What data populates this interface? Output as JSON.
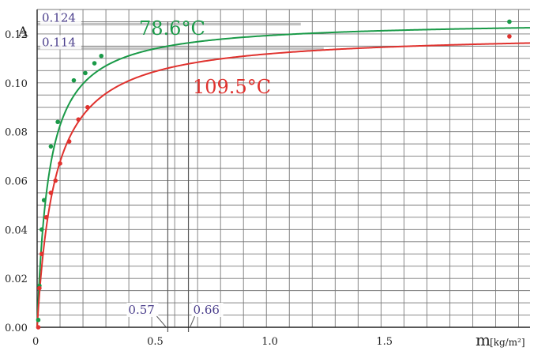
{
  "chart_data": {
    "type": "scatter",
    "title": "",
    "ylabel": "A",
    "xlabel": {
      "main": "m",
      "unit": "[kg/m²]"
    },
    "xlim": [
      0,
      2.15
    ],
    "ylim": [
      0,
      0.13
    ],
    "grid": true,
    "xticks": [
      0,
      0.5,
      1.0,
      1.5
    ],
    "xtick_labels": [
      "0",
      "0.5",
      "1.0",
      "1.5"
    ],
    "yticks": [
      0,
      0.02,
      0.04,
      0.06,
      0.08,
      0.1,
      0.12
    ],
    "ytick_labels": [
      "0.00",
      "0.02",
      "0.04",
      "0.06",
      "0.08",
      "0.10",
      "0.12"
    ],
    "series": [
      {
        "name": "78.6°C",
        "color": "#1a9a48",
        "x": [
          0.005,
          0.01,
          0.02,
          0.03,
          0.06,
          0.09,
          0.16,
          0.21,
          0.25,
          0.28,
          2.06
        ],
        "y": [
          0.003,
          0.017,
          0.04,
          0.052,
          0.074,
          0.084,
          0.101,
          0.104,
          0.108,
          0.111,
          0.125
        ],
        "fit": {
          "Amax": 0.1255,
          "k": 0.052
        }
      },
      {
        "name": "109.5°C",
        "color": "#e0322e",
        "x": [
          0.005,
          0.01,
          0.02,
          0.04,
          0.06,
          0.08,
          0.1,
          0.14,
          0.18,
          0.22,
          2.06
        ],
        "y": [
          0.0,
          0.016,
          0.03,
          0.045,
          0.055,
          0.06,
          0.067,
          0.076,
          0.085,
          0.09,
          0.119
        ],
        "fit": {
          "Amax": 0.1205,
          "k": 0.078
        }
      }
    ],
    "annotations": [
      {
        "label": "0.124",
        "y": 0.124,
        "x_end": 1.15
      },
      {
        "label": "0.114",
        "y": 0.114,
        "x_end": 1.25
      },
      {
        "label": "0.57",
        "x": 0.57
      },
      {
        "label": "0.66",
        "x": 0.66
      }
    ]
  }
}
